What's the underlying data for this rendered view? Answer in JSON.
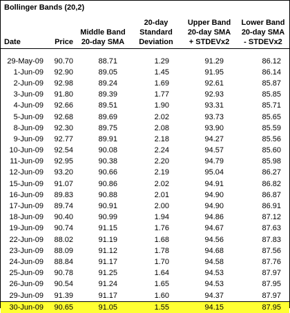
{
  "title": "Bollinger Bands (20,2)",
  "colors": {
    "highlight": "#ffff33",
    "border": "#000000"
  },
  "headers": {
    "date": "Date",
    "price": "Price",
    "middle": [
      "Middle Band",
      "20-day SMA"
    ],
    "stdev": [
      "20-day",
      "Standard",
      "Deviation"
    ],
    "upper": [
      "Upper Band",
      "20-day SMA",
      "+ STDEVx2"
    ],
    "lower": [
      "Lower Band",
      "20-day SMA",
      "- STDEVx2"
    ]
  },
  "rows": [
    {
      "date": "29-May-09",
      "price": "90.70",
      "middle": "88.71",
      "stdev": "1.29",
      "upper": "91.29",
      "lower": "86.12"
    },
    {
      "date": "1-Jun-09",
      "price": "92.90",
      "middle": "89.05",
      "stdev": "1.45",
      "upper": "91.95",
      "lower": "86.14"
    },
    {
      "date": "2-Jun-09",
      "price": "92.98",
      "middle": "89.24",
      "stdev": "1.69",
      "upper": "92.61",
      "lower": "85.87"
    },
    {
      "date": "3-Jun-09",
      "price": "91.80",
      "middle": "89.39",
      "stdev": "1.77",
      "upper": "92.93",
      "lower": "85.85"
    },
    {
      "date": "4-Jun-09",
      "price": "92.66",
      "middle": "89.51",
      "stdev": "1.90",
      "upper": "93.31",
      "lower": "85.71"
    },
    {
      "date": "5-Jun-09",
      "price": "92.68",
      "middle": "89.69",
      "stdev": "2.02",
      "upper": "93.73",
      "lower": "85.65"
    },
    {
      "date": "8-Jun-09",
      "price": "92.30",
      "middle": "89.75",
      "stdev": "2.08",
      "upper": "93.90",
      "lower": "85.59"
    },
    {
      "date": "9-Jun-09",
      "price": "92.77",
      "middle": "89.91",
      "stdev": "2.18",
      "upper": "94.27",
      "lower": "85.56"
    },
    {
      "date": "10-Jun-09",
      "price": "92.54",
      "middle": "90.08",
      "stdev": "2.24",
      "upper": "94.57",
      "lower": "85.60"
    },
    {
      "date": "11-Jun-09",
      "price": "92.95",
      "middle": "90.38",
      "stdev": "2.20",
      "upper": "94.79",
      "lower": "85.98"
    },
    {
      "date": "12-Jun-09",
      "price": "93.20",
      "middle": "90.66",
      "stdev": "2.19",
      "upper": "95.04",
      "lower": "86.27"
    },
    {
      "date": "15-Jun-09",
      "price": "91.07",
      "middle": "90.86",
      "stdev": "2.02",
      "upper": "94.91",
      "lower": "86.82"
    },
    {
      "date": "16-Jun-09",
      "price": "89.83",
      "middle": "90.88",
      "stdev": "2.01",
      "upper": "94.90",
      "lower": "86.87"
    },
    {
      "date": "17-Jun-09",
      "price": "89.74",
      "middle": "90.91",
      "stdev": "2.00",
      "upper": "94.90",
      "lower": "86.91"
    },
    {
      "date": "18-Jun-09",
      "price": "90.40",
      "middle": "90.99",
      "stdev": "1.94",
      "upper": "94.86",
      "lower": "87.12"
    },
    {
      "date": "19-Jun-09",
      "price": "90.74",
      "middle": "91.15",
      "stdev": "1.76",
      "upper": "94.67",
      "lower": "87.63"
    },
    {
      "date": "22-Jun-09",
      "price": "88.02",
      "middle": "91.19",
      "stdev": "1.68",
      "upper": "94.56",
      "lower": "87.83"
    },
    {
      "date": "23-Jun-09",
      "price": "88.09",
      "middle": "91.12",
      "stdev": "1.78",
      "upper": "94.68",
      "lower": "87.56"
    },
    {
      "date": "24-Jun-09",
      "price": "88.84",
      "middle": "91.17",
      "stdev": "1.70",
      "upper": "94.58",
      "lower": "87.76"
    },
    {
      "date": "25-Jun-09",
      "price": "90.78",
      "middle": "91.25",
      "stdev": "1.64",
      "upper": "94.53",
      "lower": "87.97"
    },
    {
      "date": "26-Jun-09",
      "price": "90.54",
      "middle": "91.24",
      "stdev": "1.65",
      "upper": "94.53",
      "lower": "87.95"
    },
    {
      "date": "29-Jun-09",
      "price": "91.39",
      "middle": "91.17",
      "stdev": "1.60",
      "upper": "94.37",
      "lower": "87.97"
    },
    {
      "date": "30-Jun-09",
      "price": "90.65",
      "middle": "91.05",
      "stdev": "1.55",
      "upper": "94.15",
      "lower": "87.95",
      "highlighted": true
    }
  ]
}
